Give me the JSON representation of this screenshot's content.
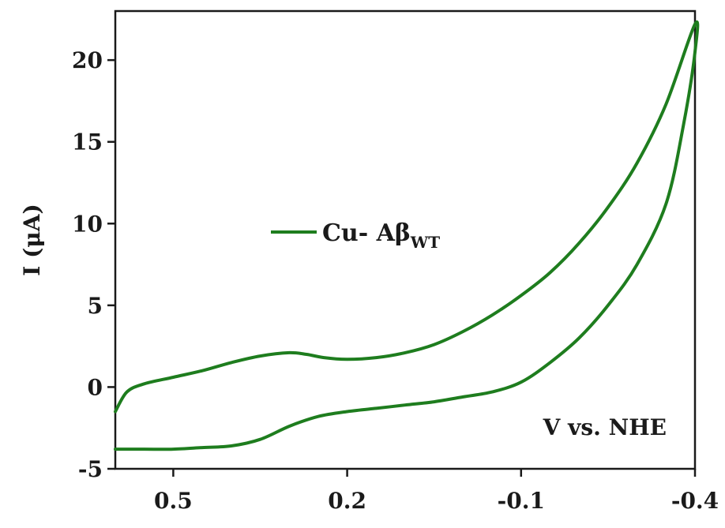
{
  "chart_data": {
    "type": "line",
    "title": "",
    "xlabel": "",
    "ylabel": "I (μA)",
    "annotation": "V vs. NHE",
    "x_reversed": true,
    "xlim": [
      0.6,
      -0.4
    ],
    "ylim": [
      -5,
      23
    ],
    "xticks": [
      0.5,
      0.2,
      -0.1,
      -0.4
    ],
    "xtick_labels": [
      "0.5",
      "0.2",
      "-0.1",
      "-0.4"
    ],
    "yticks": [
      -5,
      0,
      5,
      10,
      15,
      20
    ],
    "ytick_labels": [
      "-5",
      "0",
      "5",
      "10",
      "15",
      "20"
    ],
    "grid": false,
    "legend": {
      "placement": "center-left",
      "main": "Cu- Aβ",
      "subscript": "WT"
    },
    "series": [
      {
        "name": "Cu- AβWT",
        "color": "#1e7d1e",
        "x": [
          0.6,
          0.58,
          0.55,
          0.5,
          0.45,
          0.4,
          0.35,
          0.3,
          0.27,
          0.24,
          0.2,
          0.15,
          0.1,
          0.05,
          0.0,
          -0.05,
          -0.1,
          -0.15,
          -0.2,
          -0.25,
          -0.3,
          -0.35,
          -0.4,
          -0.4,
          -0.38,
          -0.35,
          -0.3,
          -0.25,
          -0.2,
          -0.15,
          -0.1,
          -0.05,
          0.0,
          0.05,
          0.1,
          0.15,
          0.2,
          0.25,
          0.3,
          0.35,
          0.4,
          0.45,
          0.5,
          0.55,
          0.6
        ],
        "y": [
          -1.5,
          -0.3,
          0.2,
          0.6,
          1.0,
          1.5,
          1.9,
          2.1,
          2.0,
          1.8,
          1.7,
          1.8,
          2.1,
          2.6,
          3.4,
          4.4,
          5.6,
          7.0,
          8.8,
          11.0,
          13.7,
          17.3,
          22.2,
          20.5,
          16.0,
          11.2,
          7.5,
          5.0,
          3.0,
          1.5,
          0.3,
          -0.3,
          -0.6,
          -0.9,
          -1.1,
          -1.3,
          -1.5,
          -1.8,
          -2.4,
          -3.2,
          -3.6,
          -3.7,
          -3.8,
          -3.8,
          -3.8
        ]
      }
    ]
  }
}
